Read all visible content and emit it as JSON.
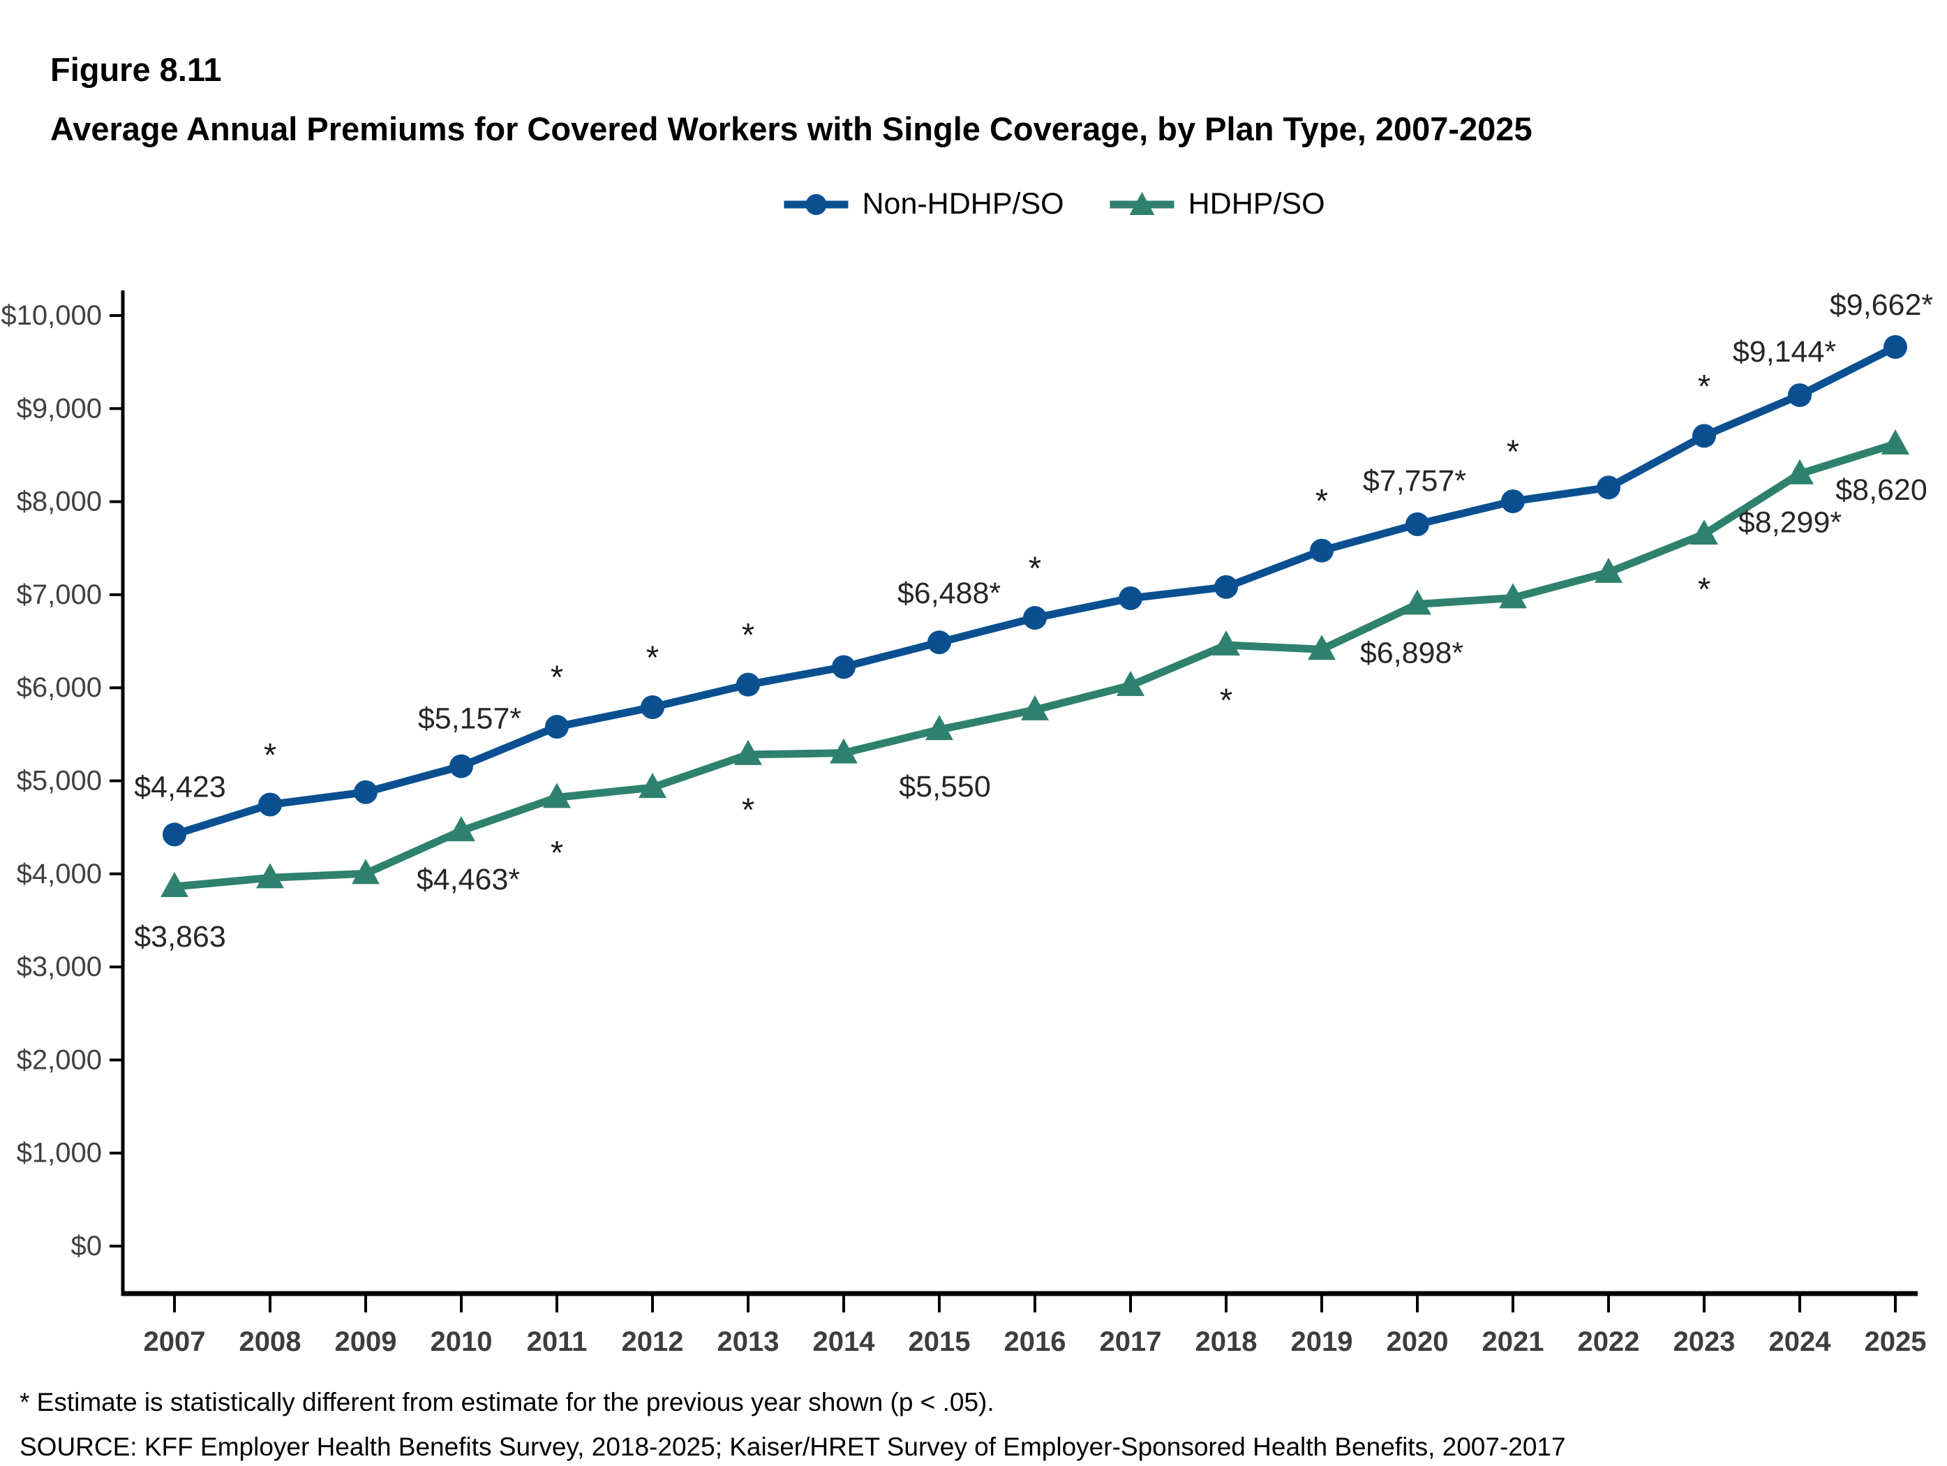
{
  "figure": {
    "number": "Figure 8.11",
    "title": "Average Annual Premiums for Covered Workers with Single Coverage, by Plan Type, 2007-2025"
  },
  "legend": {
    "items": [
      {
        "label": "Non-HDHP/SO",
        "marker": "circle-icon",
        "color": "#0a5091"
      },
      {
        "label": "HDHP/SO",
        "marker": "triangle-icon",
        "color": "#2f816f"
      }
    ]
  },
  "footnotes": {
    "asterisk": "* Estimate is statistically different from estimate for the previous year shown (p < .05).",
    "source": "SOURCE: KFF Employer Health Benefits Survey, 2018-2025; Kaiser/HRET Survey of Employer-Sponsored Health Benefits, 2007-2017"
  },
  "chart_data": {
    "type": "line",
    "x": [
      2007,
      2008,
      2009,
      2010,
      2011,
      2012,
      2013,
      2014,
      2015,
      2016,
      2017,
      2018,
      2019,
      2020,
      2021,
      2022,
      2023,
      2024,
      2025
    ],
    "ylim": [
      0,
      10400
    ],
    "grid": false,
    "legend_position": "top-center",
    "yticks": {
      "values": [
        0,
        1000,
        2000,
        3000,
        4000,
        5000,
        6000,
        7000,
        8000,
        9000,
        10000
      ],
      "labels": [
        "$0",
        "$1,000",
        "$2,000",
        "$3,000",
        "$4,000",
        "$5,000",
        "$6,000",
        "$7,000",
        "$8,000",
        "$9,000",
        "$10,000"
      ]
    },
    "axis_color": "#000000",
    "series": [
      {
        "name": "Non-HDHP/SO",
        "color": "#0a5091",
        "marker": "circle",
        "asterisk_side": "above",
        "values": [
          4423,
          4745,
          4878,
          5157,
          5581,
          5791,
          6034,
          6223,
          6488,
          6751,
          6962,
          7083,
          7474,
          7757,
          8004,
          8152,
          8707,
          9144,
          9662
        ],
        "point_labels": [
          {
            "year": 2007,
            "text": "$4,423",
            "dx": 8,
            "dy": -68
          },
          {
            "year": 2010,
            "text": "$5,157*",
            "dx": 12,
            "dy": -68
          },
          {
            "year": 2015,
            "text": "$6,488*",
            "dx": 14,
            "dy": -70
          },
          {
            "year": 2020,
            "text": "$7,757*",
            "dx": -4,
            "dy": -62
          },
          {
            "year": 2024,
            "text": "$9,144*",
            "dx": -22,
            "dy": -62
          },
          {
            "year": 2025,
            "text": "$9,662*",
            "dx": -20,
            "dy": -60
          }
        ],
        "asterisk_years": [
          2008,
          2011,
          2012,
          2013,
          2016,
          2019,
          2021,
          2023
        ]
      },
      {
        "name": "HDHP/SO",
        "color": "#2f816f",
        "marker": "triangle",
        "asterisk_side": "below",
        "values": [
          3863,
          3958,
          4003,
          4463,
          4821,
          4928,
          5282,
          5299,
          5550,
          5762,
          6024,
          6459,
          6412,
          6898,
          6966,
          7240,
          7651,
          8299,
          8620
        ],
        "point_labels": [
          {
            "year": 2007,
            "text": "$3,863",
            "dx": 8,
            "dy": 72
          },
          {
            "year": 2010,
            "text": "$4,463*",
            "dx": 10,
            "dy": 70
          },
          {
            "year": 2015,
            "text": "$5,550",
            "dx": 8,
            "dy": 82
          },
          {
            "year": 2020,
            "text": "$6,898*",
            "dx": -8,
            "dy": 70
          },
          {
            "year": 2024,
            "text": "$8,299*",
            "dx": -14,
            "dy": 70
          },
          {
            "year": 2025,
            "text": "$8,620",
            "dx": -20,
            "dy": 66
          }
        ],
        "asterisk_years": [
          2011,
          2013,
          2018,
          2023
        ]
      }
    ]
  }
}
